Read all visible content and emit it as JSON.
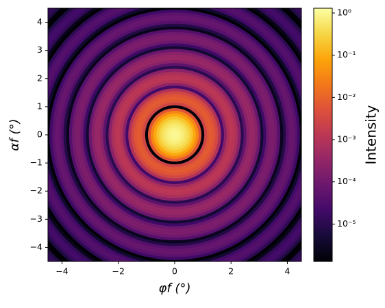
{
  "chart_data": {
    "type": "radial-heatmap",
    "xlabel": "φf (°)",
    "ylabel": "αf (°)",
    "colorbar_label": "Intensity",
    "colormap": "inferno",
    "log_scale": true,
    "xlim": [
      -4.5,
      4.5
    ],
    "ylim": [
      -4.5,
      4.5
    ],
    "xticks": [
      {
        "value": -4,
        "label": "−4"
      },
      {
        "value": -2,
        "label": "−2"
      },
      0,
      2,
      4
    ],
    "yticks": [
      {
        "value": -4,
        "label": "−4"
      },
      {
        "value": -3,
        "label": "−3"
      },
      {
        "value": -2,
        "label": "−2"
      },
      {
        "value": -1,
        "label": "−1"
      },
      0,
      1,
      2,
      3,
      4
    ],
    "clim": [
      1.3e-06,
      1.3
    ],
    "cticks": [
      {
        "value": 1e-05,
        "label": "10⁻⁵"
      },
      {
        "value": 0.0001,
        "label": "10⁻⁴"
      },
      {
        "value": 0.001,
        "label": "10⁻³"
      },
      {
        "value": 0.01,
        "label": "10⁻²"
      },
      {
        "value": 0.1,
        "label": "10⁻¹"
      },
      {
        "value": 1,
        "label": "10⁰"
      }
    ],
    "r": [
      0,
      0.1,
      0.2,
      0.3,
      0.4,
      0.5,
      0.6,
      0.7,
      0.8,
      0.9,
      1.0,
      1.1,
      1.2,
      1.3,
      1.4,
      1.5,
      1.6,
      1.7,
      1.8,
      1.9,
      2.0,
      2.1,
      2.2,
      2.3,
      2.4,
      2.5,
      2.6,
      2.7,
      2.8,
      2.9,
      3.0,
      3.1,
      3.2,
      3.3,
      3.4,
      3.5,
      3.6,
      3.7,
      3.8,
      3.9,
      4.0,
      4.1,
      4.2,
      4.3,
      4.4,
      4.5,
      4.6,
      4.7,
      4.8,
      4.9,
      5.0,
      5.1,
      5.2,
      5.3,
      5.4,
      5.5,
      5.6,
      5.7,
      5.8,
      5.9,
      6.0,
      6.1,
      6.2,
      6.3,
      6.4
    ],
    "values": [
      1,
      0.96,
      0.849,
      0.689,
      0.507,
      0.335,
      0.193,
      0.0921,
      0.0328,
      0.00618,
      1.5e-06,
      0.0027,
      0.00633,
      0.0074,
      0.00575,
      0.00303,
      0.00088,
      2.1e-05,
      0.000258,
      0.00088,
      0.00125,
      0.00113,
      0.00069,
      0.00023,
      1e-05,
      5.7e-05,
      0.000236,
      0.00037,
      0.00036,
      0.000231,
      8.3e-05,
      4.4e-06,
      1.9e-05,
      8.7e-05,
      0.000144,
      0.000147,
      0.0001,
      3.8e-05,
      2.5e-06,
      8.1e-06,
      3.97e-05,
      6.8e-05,
      7.1e-05,
      4.9e-05,
      1.88e-05,
      1.4e-06,
      4e-06,
      2.06e-05,
      3.6e-05,
      3.8e-05,
      2.7e-05,
      1.07e-05,
      7.6e-07,
      2.3e-06,
      1.19e-05,
      2.08e-05,
      2.25e-05,
      1.6e-05,
      6.5e-06,
      4.8e-07,
      1.4e-06,
      7.2e-06,
      1.28e-05,
      1.4e-05,
      1e-05
    ]
  }
}
